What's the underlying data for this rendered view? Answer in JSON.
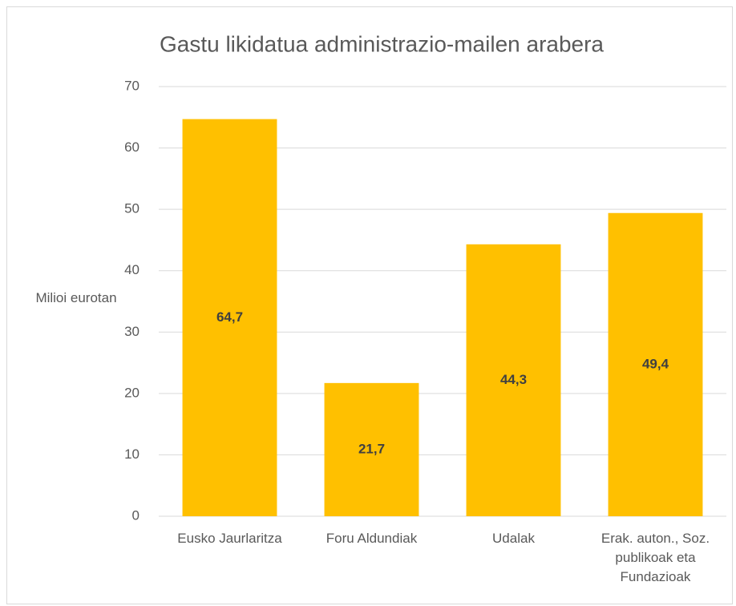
{
  "chart_data": {
    "type": "bar",
    "title": "Gastu likidatua administrazio-mailen arabera",
    "y_label": "Milioi eurotan",
    "categories": [
      "Eusko Jaurlaritza",
      "Foru Aldundiak",
      "Udalak",
      "Erak. auton., Soz. publikoak eta Fundazioak"
    ],
    "values": [
      64.7,
      21.7,
      44.3,
      49.4
    ],
    "value_labels": [
      "64,7",
      "21,7",
      "44,3",
      "49,4"
    ],
    "color": "#ffc000",
    "ylim": [
      0,
      70
    ],
    "yticks": [
      0,
      10,
      20,
      30,
      40,
      50,
      60,
      70
    ],
    "grid": true
  }
}
